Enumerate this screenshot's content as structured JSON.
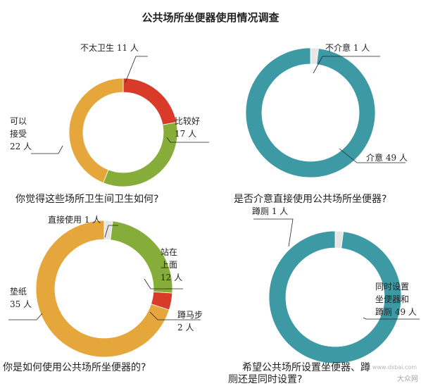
{
  "title": "公共场所坐便器使用情况调查",
  "questions": [
    "你觉得这些场所卫生间卫生如何?",
    "是否介意直接使用公共场所坐便器?",
    "你是如何使用公共场所坐便器的?",
    "希望公共场所设置坐便器、蹲",
    "厕还是同时设置?"
  ],
  "chart_data": [
    {
      "type": "pie",
      "donut": true,
      "categories": [
        "不太卫生",
        "比较好",
        "可以接受"
      ],
      "values": [
        11,
        17,
        22
      ],
      "unit": "人",
      "colors": [
        "#d93b2b",
        "#86ad3a",
        "#e5a63c"
      ],
      "labels": [
        [
          "不太卫生 11 人"
        ],
        [
          "比较好",
          "17 人"
        ],
        [
          "可以",
          "接受",
          "22 人"
        ]
      ]
    },
    {
      "type": "pie",
      "donut": true,
      "categories": [
        "不介意",
        "介意"
      ],
      "values": [
        1,
        49
      ],
      "unit": "人",
      "colors": [
        "#e6e6e6",
        "#3d9aa5"
      ],
      "labels": [
        [
          "不介意 1 人"
        ],
        [
          "介意 49 人"
        ]
      ]
    },
    {
      "type": "pie",
      "donut": true,
      "categories": [
        "直接使用",
        "站在上面",
        "蹲马步",
        "垫纸"
      ],
      "values": [
        1,
        12,
        2,
        35
      ],
      "unit": "人",
      "colors": [
        "#e6e6e6",
        "#86ad3a",
        "#d93b2b",
        "#e5a63c"
      ],
      "labels": [
        [
          "直接使用 1 人"
        ],
        [
          "站在",
          "上面",
          "12 人"
        ],
        [
          "蹲马步",
          "2 人"
        ],
        [
          "垫纸",
          "35 人"
        ]
      ]
    },
    {
      "type": "pie",
      "donut": true,
      "categories": [
        "蹲厕",
        "同时设置坐便器和蹲厕"
      ],
      "values": [
        1,
        49
      ],
      "unit": "人",
      "colors": [
        "#e6e6e6",
        "#3d9aa5"
      ],
      "labels": [
        [
          "蹲厕 1 人"
        ],
        [
          "同时设置",
          "坐便器和",
          "蹲厕 49 人"
        ]
      ]
    }
  ],
  "watermark": "大众网",
  "watermark_site": "www.dxbai.com"
}
